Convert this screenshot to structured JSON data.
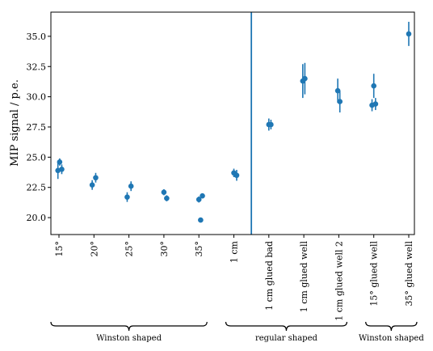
{
  "chart_data": {
    "type": "scatter",
    "ylabel": "MIP signal / p.e.",
    "ylim": [
      18.6,
      37.0
    ],
    "yticks": [
      20.0,
      22.5,
      25.0,
      27.5,
      30.0,
      32.5,
      35.0
    ],
    "ytick_labels": [
      "20.0",
      "22.5",
      "25.0",
      "27.5",
      "30.0",
      "32.5",
      "35.0"
    ],
    "categories": [
      "15°",
      "20°",
      "25°",
      "30°",
      "35°",
      "1 cm",
      "1 cm glued bad",
      "1 cm glued well",
      "1 cm glued well 2",
      "15° glued well",
      "35° glued well"
    ],
    "points": [
      {
        "x": 0,
        "dx": -0.03,
        "y": 23.9,
        "err": 0.7
      },
      {
        "x": 0,
        "dx": 0.02,
        "y": 24.6,
        "err": 0.3
      },
      {
        "x": 0,
        "dx": 0.08,
        "y": 24.0,
        "err": 0.4
      },
      {
        "x": 1,
        "dx": 0.05,
        "y": 23.3,
        "err": 0.4
      },
      {
        "x": 1,
        "dx": -0.05,
        "y": 22.7,
        "err": 0.4
      },
      {
        "x": 2,
        "dx": 0.06,
        "y": 22.6,
        "err": 0.4
      },
      {
        "x": 2,
        "dx": -0.05,
        "y": 21.7,
        "err": 0.4
      },
      {
        "x": 3,
        "dx": 0.0,
        "y": 22.1,
        "err": 0.25
      },
      {
        "x": 3,
        "dx": 0.08,
        "y": 21.6,
        "err": 0.25
      },
      {
        "x": 4,
        "dx": 0.0,
        "y": 21.5,
        "err": 0.25
      },
      {
        "x": 4,
        "dx": 0.1,
        "y": 21.8,
        "err": 0.2
      },
      {
        "x": 4,
        "dx": 0.05,
        "y": 19.8,
        "err": 0.2
      },
      {
        "x": 5,
        "dx": 0.0,
        "y": 23.7,
        "err": 0.35
      },
      {
        "x": 5,
        "dx": 0.08,
        "y": 23.5,
        "err": 0.45
      },
      {
        "x": 6,
        "dx": 0.0,
        "y": 27.7,
        "err": 0.5
      },
      {
        "x": 6,
        "dx": 0.06,
        "y": 27.7,
        "err": 0.4
      },
      {
        "x": 7,
        "dx": -0.03,
        "y": 31.3,
        "err": 1.4
      },
      {
        "x": 7,
        "dx": 0.03,
        "y": 31.5,
        "err": 1.3
      },
      {
        "x": 8,
        "dx": -0.03,
        "y": 30.5,
        "err": 1.0
      },
      {
        "x": 8,
        "dx": 0.03,
        "y": 29.6,
        "err": 0.9
      },
      {
        "x": 9,
        "dx": 0.0,
        "y": 30.9,
        "err": 1.0
      },
      {
        "x": 9,
        "dx": -0.05,
        "y": 29.3,
        "err": 0.5
      },
      {
        "x": 9,
        "dx": 0.05,
        "y": 29.4,
        "err": 0.5
      },
      {
        "x": 10,
        "dx": 0.0,
        "y": 35.2,
        "err": 1.0
      }
    ],
    "divider_after_category": 5,
    "groups": [
      {
        "label": "Winston shaped",
        "from": 0,
        "to": 4
      },
      {
        "label": "regular shaped",
        "from": 5,
        "to": 8
      },
      {
        "label": "Winston shaped",
        "from": 9,
        "to": 10
      }
    ],
    "grid": false,
    "colors": {
      "marker": "#1f77b4",
      "divider": "#1f77b4",
      "axis": "#000000"
    }
  }
}
